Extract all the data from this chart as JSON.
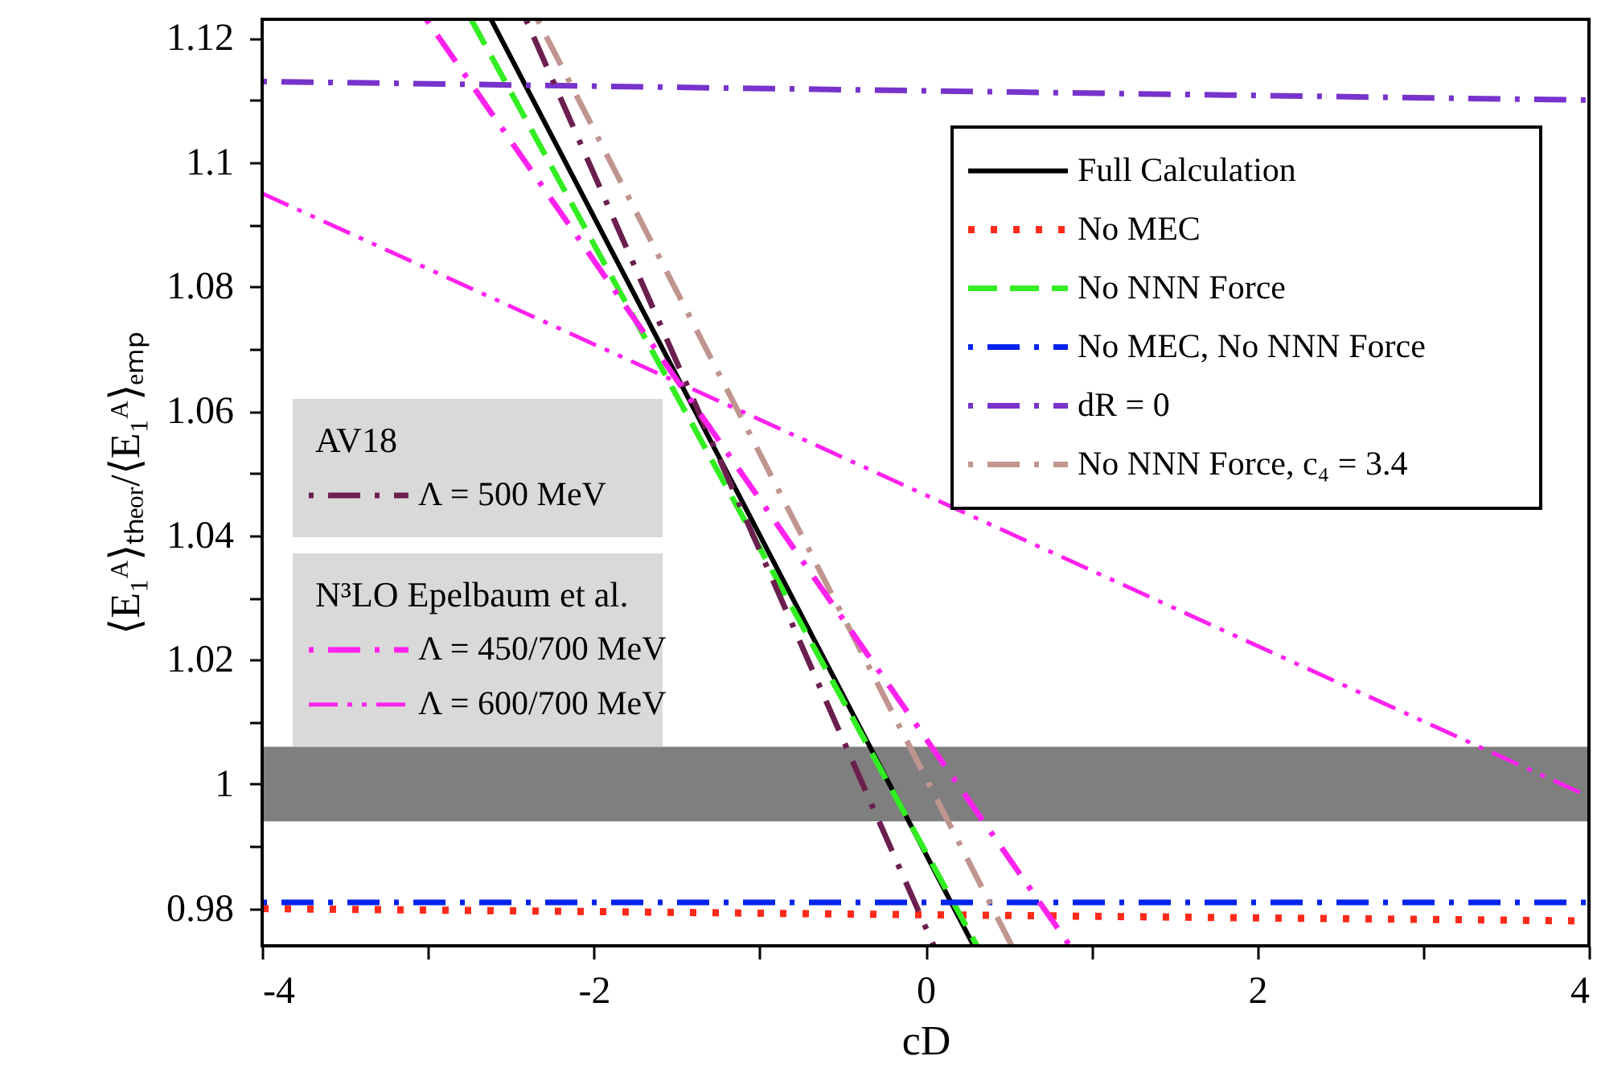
{
  "chart_data": {
    "type": "line",
    "xlabel": "cD",
    "ylabel": "⟨E₁ᴬ⟩ₜₕₑₒᵣ/⟨E₁ᴬ⟩ₑₘₚ",
    "xlim": [
      -4,
      4
    ],
    "ylim": [
      0.974,
      1.123
    ],
    "xticks": [
      -4,
      {
        "value": -3,
        "label": null
      },
      -2,
      {
        "value": -1,
        "label": null
      },
      0,
      {
        "value": 1,
        "label": null
      },
      2,
      {
        "value": 3,
        "label": null
      },
      4
    ],
    "yticks": [
      0.98,
      {
        "value": 0.99,
        "label": null
      },
      1,
      {
        "value": 1.01,
        "label": null
      },
      1.02,
      {
        "value": 1.03,
        "label": null
      },
      1.04,
      {
        "value": 1.05,
        "label": null
      },
      1.06,
      {
        "value": 1.07,
        "label": null
      },
      1.08,
      {
        "value": 1.09,
        "label": null
      },
      1.1,
      {
        "value": 1.11,
        "label": null
      },
      1.12
    ],
    "grid": false,
    "legend": "top right",
    "marker": "none",
    "annotations": [
      "AV18",
      "N³LO Epelbaum et al."
    ],
    "bands": [
      {
        "axis": "y",
        "from": 0.994,
        "to": 1.006,
        "color": "#7f7f7f"
      }
    ],
    "series": [
      {
        "name": "Full Calculation",
        "color": "#000000",
        "line_style": "solid",
        "x": [
          -2.62,
          0.29
        ],
        "values": [
          1.123,
          0.974
        ]
      },
      {
        "name": "No MEC",
        "color": "#ff2a1a",
        "line_style": "dotted",
        "x": [
          -4,
          4
        ],
        "values": [
          0.98,
          0.978
        ]
      },
      {
        "name": "No NNN Force",
        "color": "#33ee22",
        "line_style": "dashed",
        "x": [
          -2.74,
          0.31
        ],
        "values": [
          1.123,
          0.974
        ]
      },
      {
        "name": "No MEC, No NNN Force",
        "color": "#0022ee",
        "line_style": "dashdot",
        "x": [
          -4,
          4
        ],
        "values": [
          0.981,
          0.981
        ]
      },
      {
        "name": "dR = 0",
        "color": "#7733cc",
        "line_style": "dashdot",
        "x": [
          -4,
          4
        ],
        "values": [
          1.113,
          1.11
        ]
      },
      {
        "name": "No NNN Force, c₄ = 3.4",
        "color": "#c0958f",
        "line_style": "dashdot",
        "x": [
          -2.34,
          0.52
        ],
        "values": [
          1.123,
          0.974
        ]
      },
      {
        "name": "Λ = 500 MeV",
        "color": "#6b1f4f",
        "line_style": "dashdot",
        "x": [
          -2.41,
          0.05
        ],
        "values": [
          1.123,
          0.974
        ]
      },
      {
        "name": "Λ = 450/700 MeV",
        "color": "#ff22ee",
        "line_style": "dashdot",
        "x": [
          -3.01,
          0.87
        ],
        "values": [
          1.123,
          0.974
        ]
      },
      {
        "name": "Λ = 600/700 MeV",
        "color": "#ff22ee",
        "line_style": "dashdotdot",
        "x": [
          -4,
          4
        ],
        "values": [
          1.095,
          0.998
        ]
      }
    ]
  }
}
